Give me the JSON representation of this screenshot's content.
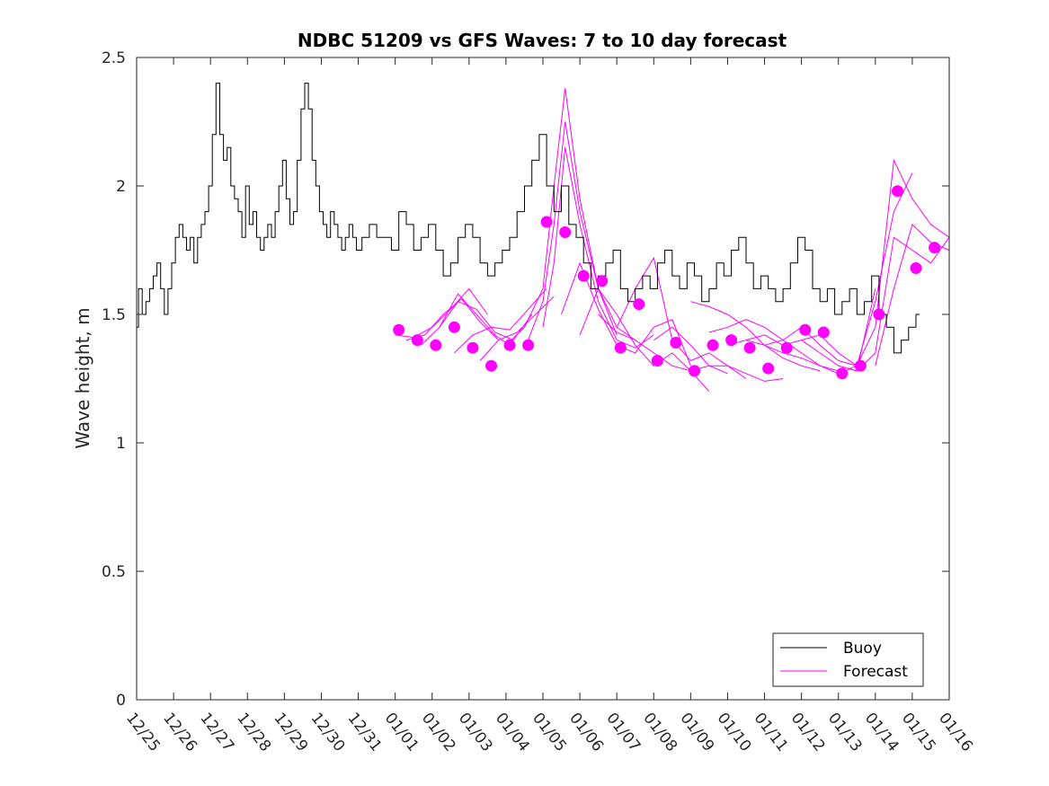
{
  "chart_data": {
    "type": "line",
    "title": "NDBC 51209 vs GFS Waves: 7 to 10 day forecast",
    "xlabel": "",
    "ylabel": "Wave height, m",
    "xlim": [
      0,
      22
    ],
    "ylim": [
      0,
      2.5
    ],
    "x_tick_labels": [
      "12/25",
      "12/26",
      "12/27",
      "12/28",
      "12/29",
      "12/30",
      "12/31",
      "01/01",
      "01/02",
      "01/03",
      "01/04",
      "01/05",
      "01/06",
      "01/07",
      "01/08",
      "01/09",
      "01/10",
      "01/11",
      "01/12",
      "01/13",
      "01/14",
      "01/15",
      "01/16"
    ],
    "y_ticks": [
      0,
      0.5,
      1,
      1.5,
      2,
      2.5
    ],
    "y_tick_labels": [
      "0",
      "0.5",
      "1",
      "1.5",
      "2",
      "2.5"
    ],
    "legend": {
      "position": "bottom-right",
      "entries": [
        "Buoy",
        "Forecast"
      ]
    },
    "series": [
      {
        "name": "Buoy",
        "color": "#000000",
        "note": "x = days since 12/25 00:00",
        "x": [
          0,
          0.1,
          0.2,
          0.3,
          0.4,
          0.5,
          0.6,
          0.7,
          0.8,
          0.9,
          1.0,
          1.1,
          1.2,
          1.3,
          1.4,
          1.5,
          1.6,
          1.7,
          1.8,
          1.9,
          2.0,
          2.1,
          2.2,
          2.3,
          2.4,
          2.5,
          2.6,
          2.7,
          2.8,
          2.9,
          3.0,
          3.1,
          3.2,
          3.3,
          3.4,
          3.5,
          3.6,
          3.7,
          3.8,
          3.9,
          4.0,
          4.1,
          4.2,
          4.3,
          4.4,
          4.5,
          4.6,
          4.7,
          4.8,
          4.9,
          5.0,
          5.1,
          5.2,
          5.3,
          5.4,
          5.5,
          5.6,
          5.7,
          5.8,
          5.9,
          6.0,
          6.2,
          6.4,
          6.6,
          6.8,
          7.0,
          7.2,
          7.4,
          7.6,
          7.8,
          8.0,
          8.2,
          8.4,
          8.6,
          8.8,
          9.0,
          9.2,
          9.4,
          9.6,
          9.8,
          10.0,
          10.2,
          10.4,
          10.6,
          10.8,
          11.0,
          11.2,
          11.4,
          11.6,
          11.8,
          12.0,
          12.2,
          12.4,
          12.6,
          12.8,
          13.0,
          13.2,
          13.4,
          13.6,
          13.8,
          14.0,
          14.2,
          14.4,
          14.6,
          14.8,
          15.0,
          15.2,
          15.4,
          15.6,
          15.8,
          16.0,
          16.2,
          16.4,
          16.6,
          16.8,
          17.0,
          17.2,
          17.4,
          17.6,
          17.8,
          18.0,
          18.2,
          18.4,
          18.6,
          18.8,
          19.0,
          19.2,
          19.4,
          19.6,
          19.8,
          20.0,
          20.2,
          20.4,
          20.6,
          20.8,
          21.0,
          21.2
        ],
        "y": [
          1.45,
          1.6,
          1.5,
          1.55,
          1.6,
          1.65,
          1.7,
          1.6,
          1.5,
          1.6,
          1.7,
          1.8,
          1.85,
          1.8,
          1.75,
          1.8,
          1.7,
          1.8,
          1.85,
          1.9,
          2.0,
          2.2,
          2.4,
          2.2,
          2.1,
          2.15,
          2.0,
          1.95,
          1.9,
          1.8,
          2.0,
          1.85,
          1.9,
          1.8,
          1.75,
          1.8,
          1.85,
          1.8,
          1.9,
          2.0,
          2.1,
          1.95,
          1.85,
          1.9,
          2.1,
          2.3,
          2.4,
          2.3,
          2.1,
          2.0,
          1.9,
          1.85,
          1.8,
          1.9,
          1.85,
          1.8,
          1.75,
          1.8,
          1.85,
          1.8,
          1.75,
          1.8,
          1.85,
          1.8,
          1.8,
          1.75,
          1.9,
          1.85,
          1.75,
          1.8,
          1.85,
          1.75,
          1.65,
          1.7,
          1.8,
          1.85,
          1.8,
          1.7,
          1.65,
          1.7,
          1.75,
          1.8,
          1.9,
          2.0,
          2.1,
          2.2,
          2.0,
          1.9,
          2.0,
          1.85,
          1.8,
          1.7,
          1.6,
          1.65,
          1.7,
          1.75,
          1.6,
          1.55,
          1.6,
          1.65,
          1.6,
          1.7,
          1.75,
          1.65,
          1.6,
          1.7,
          1.65,
          1.55,
          1.6,
          1.7,
          1.65,
          1.75,
          1.8,
          1.7,
          1.6,
          1.65,
          1.6,
          1.55,
          1.6,
          1.7,
          1.8,
          1.75,
          1.6,
          1.55,
          1.6,
          1.5,
          1.55,
          1.6,
          1.5,
          1.55,
          1.65,
          1.5,
          1.45,
          1.35,
          1.4,
          1.45,
          1.5
        ]
      }
    ],
    "forecast_lines": [
      {
        "x": [
          7.0,
          7.5,
          8.0,
          8.5,
          9.0,
          9.5
        ],
        "y": [
          1.42,
          1.41,
          1.45,
          1.52,
          1.6,
          1.5
        ]
      },
      {
        "x": [
          7.3,
          7.8,
          8.3,
          8.8,
          9.3,
          9.8
        ],
        "y": [
          1.4,
          1.42,
          1.5,
          1.56,
          1.47,
          1.4
        ]
      },
      {
        "x": [
          7.7,
          8.2,
          8.7,
          9.2,
          9.7,
          10.2
        ],
        "y": [
          1.38,
          1.45,
          1.58,
          1.5,
          1.42,
          1.37
        ]
      },
      {
        "x": [
          8.2,
          8.7,
          9.2,
          9.7,
          10.2,
          10.7
        ],
        "y": [
          1.45,
          1.55,
          1.52,
          1.43,
          1.4,
          1.5
        ]
      },
      {
        "x": [
          8.6,
          9.1,
          9.6,
          10.1,
          10.6,
          11.1
        ],
        "y": [
          1.35,
          1.42,
          1.45,
          1.44,
          1.52,
          1.6
        ]
      },
      {
        "x": [
          9.3,
          9.8,
          10.3,
          10.8,
          11.3
        ],
        "y": [
          1.32,
          1.4,
          1.43,
          1.5,
          1.57
        ]
      },
      {
        "x": [
          10.0,
          10.5,
          11.0,
          11.3,
          11.6,
          12.0,
          12.5,
          13.0
        ],
        "y": [
          1.38,
          1.45,
          1.6,
          2.0,
          2.38,
          1.95,
          1.6,
          1.42
        ]
      },
      {
        "x": [
          10.6,
          11.0,
          11.3,
          11.6,
          12.0,
          12.5,
          13.0,
          13.5
        ],
        "y": [
          1.4,
          1.55,
          1.85,
          2.25,
          1.9,
          1.6,
          1.45,
          1.4
        ]
      },
      {
        "x": [
          11.0,
          11.3,
          11.6,
          12.0,
          12.5,
          13.0,
          13.5,
          14.0
        ],
        "y": [
          1.45,
          1.7,
          2.15,
          1.85,
          1.55,
          1.4,
          1.37,
          1.42
        ]
      },
      {
        "x": [
          11.5,
          12.0,
          12.5,
          13.0,
          13.5,
          14.0,
          14.5,
          15.0
        ],
        "y": [
          1.5,
          1.7,
          1.52,
          1.38,
          1.35,
          1.45,
          1.48,
          1.3
        ]
      },
      {
        "x": [
          12.0,
          12.5,
          13.0,
          13.5,
          14.0,
          14.5,
          15.0,
          15.5
        ],
        "y": [
          1.42,
          1.6,
          1.5,
          1.38,
          1.3,
          1.35,
          1.28,
          1.2
        ]
      },
      {
        "x": [
          12.5,
          13.0,
          13.5,
          14.0,
          14.5,
          15.0,
          15.5,
          16.0
        ],
        "y": [
          1.5,
          1.43,
          1.4,
          1.35,
          1.3,
          1.28,
          1.3,
          1.27
        ]
      },
      {
        "x": [
          13.0,
          13.5,
          14.0,
          14.5,
          15.0,
          15.5,
          16.0,
          16.5
        ],
        "y": [
          1.45,
          1.6,
          1.72,
          1.4,
          1.32,
          1.35,
          1.3,
          1.25
        ]
      },
      {
        "x": [
          14.0,
          14.5,
          15.0,
          15.5,
          16.0,
          16.5,
          17.0,
          17.5
        ],
        "y": [
          1.4,
          1.45,
          1.38,
          1.3,
          1.3,
          1.27,
          1.24,
          1.25
        ]
      },
      {
        "x": [
          15.0,
          15.5,
          16.0,
          16.5,
          17.0,
          17.5,
          18.0,
          18.5
        ],
        "y": [
          1.55,
          1.53,
          1.5,
          1.45,
          1.38,
          1.33,
          1.3,
          1.28
        ]
      },
      {
        "x": [
          15.5,
          16.0,
          16.5,
          17.0,
          17.5,
          18.0,
          18.5,
          19.0
        ],
        "y": [
          1.43,
          1.45,
          1.48,
          1.45,
          1.4,
          1.35,
          1.3,
          1.28
        ]
      },
      {
        "x": [
          16.0,
          16.5,
          17.0,
          17.5,
          18.0,
          18.5,
          19.0,
          19.5
        ],
        "y": [
          1.38,
          1.4,
          1.38,
          1.35,
          1.33,
          1.3,
          1.27,
          1.3
        ]
      },
      {
        "x": [
          16.5,
          17.0,
          17.5,
          18.0,
          18.5,
          19.0,
          19.5,
          20.0
        ],
        "y": [
          1.4,
          1.42,
          1.38,
          1.4,
          1.35,
          1.3,
          1.28,
          1.6
        ]
      },
      {
        "x": [
          17.0,
          17.5,
          18.0,
          18.5,
          19.0,
          19.5,
          20.0,
          20.5,
          21.0
        ],
        "y": [
          1.38,
          1.4,
          1.45,
          1.38,
          1.32,
          1.3,
          1.55,
          1.9,
          2.05
        ]
      },
      {
        "x": [
          18.0,
          18.5,
          19.0,
          19.5,
          20.0,
          20.5,
          21.0,
          21.5,
          22.0
        ],
        "y": [
          1.4,
          1.42,
          1.35,
          1.3,
          1.45,
          2.1,
          1.95,
          1.85,
          1.8
        ]
      },
      {
        "x": [
          19.0,
          19.5,
          20.0,
          20.5,
          21.0,
          21.5,
          22.0
        ],
        "y": [
          1.3,
          1.28,
          1.35,
          1.8,
          1.75,
          1.7,
          1.8
        ]
      },
      {
        "x": [
          20.0,
          20.5,
          21.0,
          21.5,
          22.0
        ],
        "y": [
          1.3,
          1.6,
          1.85,
          1.78,
          1.75
        ]
      }
    ],
    "forecast_points": {
      "x": [
        7.1,
        7.6,
        8.1,
        8.6,
        9.1,
        9.6,
        10.1,
        10.6,
        11.1,
        11.6,
        12.1,
        12.6,
        13.1,
        13.6,
        14.1,
        14.6,
        15.1,
        15.6,
        16.1,
        16.6,
        17.1,
        17.6,
        18.1,
        18.6,
        19.1,
        19.6,
        20.1,
        20.6,
        21.1,
        21.6
      ],
      "y": [
        1.44,
        1.4,
        1.38,
        1.45,
        1.37,
        1.3,
        1.38,
        1.38,
        1.86,
        1.82,
        1.65,
        1.63,
        1.37,
        1.54,
        1.32,
        1.39,
        1.28,
        1.38,
        1.4,
        1.37,
        1.29,
        1.37,
        1.44,
        1.43,
        1.27,
        1.3,
        1.5,
        1.98,
        1.68,
        1.76
      ]
    },
    "forecast_color": "#ff00ff"
  }
}
